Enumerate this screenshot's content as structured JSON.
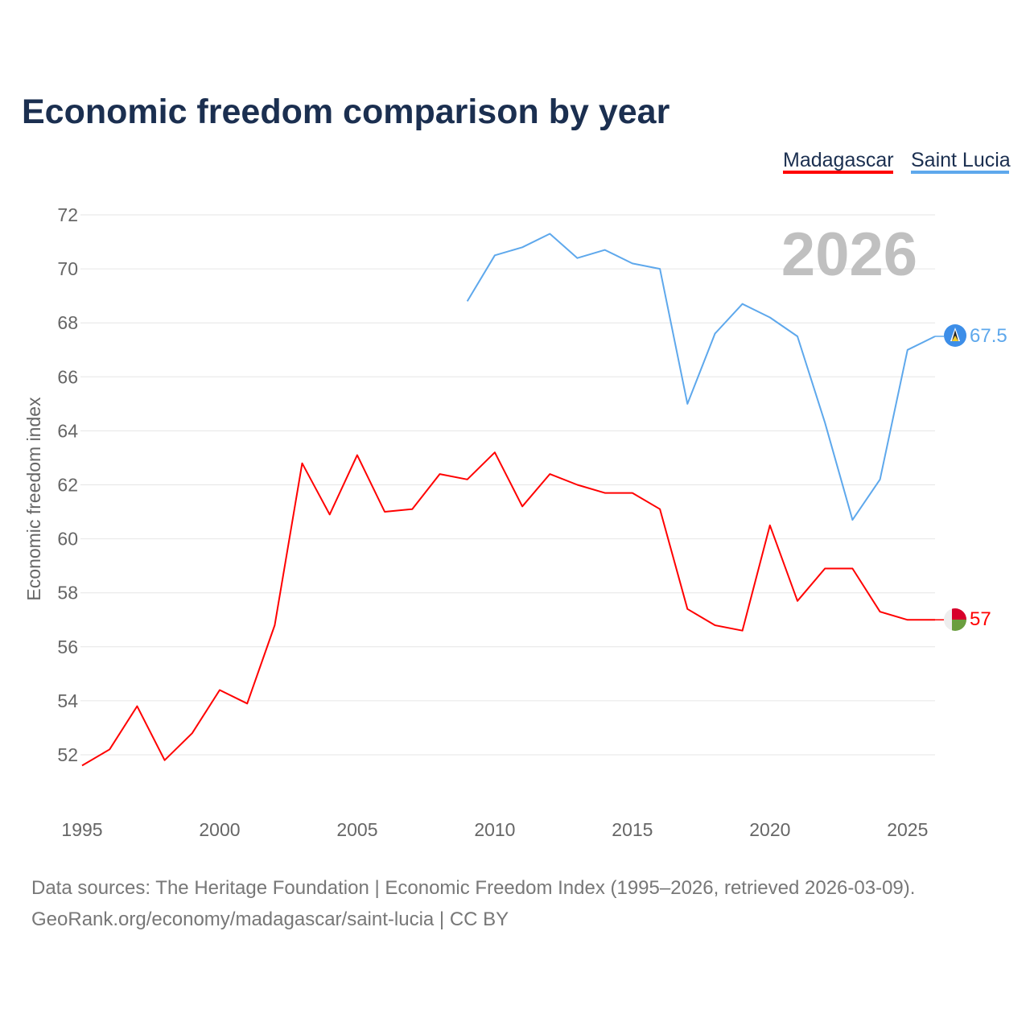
{
  "chart_data": {
    "type": "line",
    "title": "Economic freedom comparison by year",
    "ylabel": "Economic freedom index",
    "xlabel": "",
    "ylim": [
      50.5,
      72
    ],
    "xlim": [
      1995,
      2026
    ],
    "yticks": [
      52,
      54,
      56,
      58,
      60,
      62,
      64,
      66,
      68,
      70,
      72
    ],
    "xticks": [
      1995,
      2000,
      2005,
      2010,
      2015,
      2020,
      2025
    ],
    "grid": true,
    "legend_position": "top-right",
    "watermark_year": "2026",
    "series": [
      {
        "name": "Madagascar",
        "color": "#ff0000",
        "end_label": "57",
        "x": [
          1995,
          1996,
          1997,
          1998,
          1999,
          2000,
          2001,
          2002,
          2003,
          2004,
          2005,
          2006,
          2007,
          2008,
          2009,
          2010,
          2011,
          2012,
          2013,
          2014,
          2015,
          2016,
          2017,
          2018,
          2019,
          2020,
          2021,
          2022,
          2023,
          2024,
          2025,
          2026
        ],
        "values": [
          51.6,
          52.2,
          53.8,
          51.8,
          52.8,
          54.4,
          53.9,
          56.8,
          62.8,
          60.9,
          63.1,
          61.0,
          61.1,
          62.4,
          62.2,
          63.2,
          61.2,
          62.4,
          62.0,
          61.7,
          61.7,
          61.1,
          57.4,
          56.8,
          56.6,
          60.5,
          57.7,
          58.9,
          58.9,
          57.3,
          57.0,
          57.0
        ]
      },
      {
        "name": "Saint Lucia",
        "color": "#5ea8ec",
        "end_label": "67.5",
        "x": [
          2009,
          2010,
          2011,
          2012,
          2013,
          2014,
          2015,
          2016,
          2017,
          2018,
          2019,
          2020,
          2021,
          2022,
          2023,
          2024,
          2025,
          2026
        ],
        "values": [
          68.8,
          70.5,
          70.8,
          71.3,
          70.4,
          70.7,
          70.2,
          70.0,
          65.0,
          67.6,
          68.7,
          68.2,
          67.5,
          64.3,
          60.7,
          62.2,
          67.0,
          67.5
        ]
      }
    ]
  },
  "footer": {
    "line1": "Data sources: The Heritage Foundation | Economic Freedom Index (1995–2026, retrieved 2026-03-09).",
    "line2": "GeoRank.org/economy/madagascar/saint-lucia | CC BY"
  }
}
